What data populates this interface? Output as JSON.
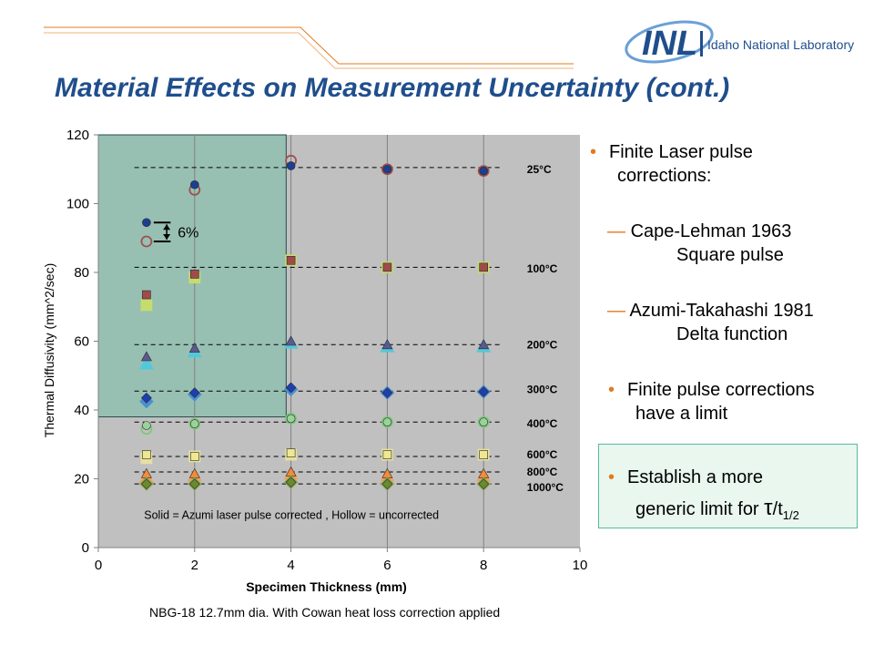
{
  "slide": {
    "title": "Material Effects on Measurement Uncertainty (cont.)",
    "logo_mark": "INL",
    "logo_text": "Idaho National Laboratory",
    "footnote": "NBG-18 12.7mm dia. With Cowan heat loss correction applied"
  },
  "bullets": {
    "b1_line1": "Finite Laser pulse",
    "b1_line2": "corrections:",
    "b2_line1": "Cape-Lehman 1963",
    "b2_line2": "Square pulse",
    "b3_line1": "Azumi-Takahashi 1981",
    "b3_line2": "Delta function",
    "b4_line1": "Finite pulse corrections",
    "b4_line2": "have a limit",
    "b5_line1": "Establish a more",
    "b5_line2_prefix": "generic limit for ",
    "b5_tau": "τ",
    "b5_t": "/t",
    "b5_sub": "1/2"
  },
  "colors": {
    "title": "#1f4e8c",
    "bullet": "#e07b1f",
    "plot_bg": "#c0c0c0",
    "highlight": "#8fbfb0",
    "box_bg": "#e9f7ee",
    "box_border": "#58b9a6"
  },
  "chart_data": {
    "type": "scatter",
    "xlabel": "Specimen Thickness (mm)",
    "ylabel": "Thermal Diffusivity (mm^2/sec)",
    "xlim": [
      0,
      10
    ],
    "ylim": [
      0,
      120
    ],
    "xticks": [
      0,
      2,
      4,
      6,
      8,
      10
    ],
    "yticks": [
      0,
      20,
      40,
      60,
      80,
      100,
      120
    ],
    "annotation": "Solid = Azumi laser pulse corrected , Hollow = uncorrected",
    "pct_label": "6%",
    "highlight_region": {
      "x": [
        0,
        3.9
      ],
      "y": [
        38,
        120
      ]
    },
    "series": [
      {
        "name": "25°C",
        "marker": "circle",
        "solid_color": "#1e3f8f",
        "hollow_color": "#a05050",
        "x": [
          1,
          2,
          4,
          6,
          8
        ],
        "solid": [
          94.5,
          105.5,
          111,
          110,
          109.5
        ],
        "hollow": [
          89,
          104,
          112.5,
          110,
          109.5
        ],
        "trend_y": 110.5,
        "label_y": 110
      },
      {
        "name": "100°C",
        "marker": "square",
        "solid_color": "#a24a4a",
        "hollow_color": "#c6dc6c",
        "x": [
          1,
          2,
          4,
          6,
          8
        ],
        "solid": [
          73.5,
          79.5,
          83.5,
          81.5,
          81.5
        ],
        "hollow": [
          70.5,
          78.5,
          83.5,
          81.5,
          81.5
        ],
        "trend_y": 81.5,
        "label_y": 81
      },
      {
        "name": "200°C",
        "marker": "triangle",
        "solid_color": "#5a5a8f",
        "hollow_color": "#52c8dc",
        "x": [
          1,
          2,
          4,
          6,
          8
        ],
        "solid": [
          55.5,
          58,
          60,
          59,
          59
        ],
        "hollow": [
          53.5,
          57,
          59.5,
          58.5,
          58.5
        ],
        "trend_y": 59,
        "label_y": 59
      },
      {
        "name": "300°C",
        "marker": "diamond",
        "solid_color": "#1e3fb0",
        "hollow_color": "#4a8fd0",
        "x": [
          1,
          2,
          4,
          6,
          8
        ],
        "solid": [
          43.5,
          45,
          46.5,
          45,
          45.3
        ],
        "hollow": [
          42.5,
          44.5,
          46,
          45,
          45.3
        ],
        "trend_y": 45.5,
        "label_y": 46
      },
      {
        "name": "400°C",
        "marker": "circle",
        "solid_color": "#9ad29a",
        "hollow_color": "#7cc87c",
        "x": [
          1,
          2,
          4,
          6,
          8
        ],
        "solid": [
          35.5,
          36,
          37.5,
          36.5,
          36.5
        ],
        "hollow": [
          34.5,
          36,
          37.5,
          36.5,
          36.5
        ],
        "trend_y": 36.5,
        "label_y": 36
      },
      {
        "name": "600°C",
        "marker": "square",
        "solid_color": "#efe890",
        "hollow_color": "#e6e0a0",
        "x": [
          1,
          2,
          4,
          6,
          8
        ],
        "solid": [
          27,
          26.5,
          27.5,
          27,
          27
        ],
        "hollow": [
          26,
          26.5,
          27,
          27,
          27
        ],
        "trend_y": 26.5,
        "label_y": 27
      },
      {
        "name": "800°C",
        "marker": "triangle",
        "solid_color": "#f08c3c",
        "hollow_color": "#f0a060",
        "x": [
          1,
          2,
          4,
          6,
          8
        ],
        "solid": [
          21.5,
          21.5,
          22,
          21.5,
          21.5
        ],
        "hollow": [
          20.5,
          21,
          21.5,
          21,
          21
        ],
        "trend_y": 22,
        "label_y": 22
      },
      {
        "name": "1000°C",
        "marker": "diamond",
        "solid_color": "#6a8a30",
        "hollow_color": "#8aa850",
        "x": [
          1,
          2,
          4,
          6,
          8
        ],
        "solid": [
          18.5,
          18.5,
          19,
          18.5,
          18.5
        ],
        "hollow": [
          18.5,
          18.5,
          19,
          18.5,
          18.5
        ],
        "trend_y": 18.5,
        "label_y": 17.5
      }
    ]
  }
}
